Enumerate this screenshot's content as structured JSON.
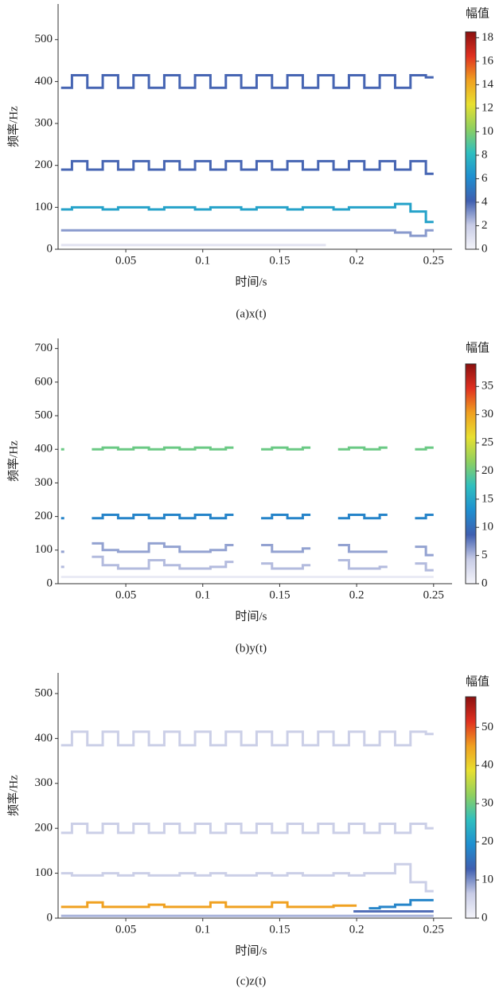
{
  "chart_data": [
    {
      "type": "spectrogram",
      "title": "(a)x(t)",
      "xlabel": "时间/s",
      "ylabel": "频率/Hz",
      "colorbar_label": "幅值",
      "xlim": [
        0.006,
        0.262
      ],
      "xticks": [
        0.05,
        0.1,
        0.15,
        0.2,
        0.25
      ],
      "ylim": [
        0,
        585
      ],
      "yticks": [
        0,
        100,
        200,
        300,
        400,
        500
      ],
      "clim": [
        0,
        18.5
      ],
      "cticks": [
        0,
        2,
        4,
        6,
        8,
        10,
        12,
        14,
        16,
        18
      ],
      "colormap": [
        "#f4f4fa",
        "#c8cce6",
        "#3f5fb0",
        "#1f8fd0",
        "#2fbfbf",
        "#8fd05f",
        "#e8e030",
        "#f0a020",
        "#e03020",
        "#8b1010"
      ],
      "x": [
        0.01,
        0.02,
        0.03,
        0.04,
        0.05,
        0.06,
        0.07,
        0.08,
        0.09,
        0.1,
        0.11,
        0.12,
        0.13,
        0.14,
        0.15,
        0.16,
        0.17,
        0.18,
        0.19,
        0.2,
        0.21,
        0.22,
        0.23,
        0.24,
        0.25
      ],
      "ridges": [
        {
          "frequency": [
            385,
            415,
            385,
            415,
            385,
            415,
            385,
            415,
            385,
            415,
            385,
            415,
            385,
            415,
            385,
            415,
            385,
            415,
            385,
            415,
            385,
            415,
            385,
            415,
            410
          ],
          "amplitude": 4
        },
        {
          "frequency": [
            190,
            210,
            190,
            210,
            190,
            210,
            190,
            210,
            190,
            210,
            190,
            210,
            190,
            210,
            190,
            210,
            190,
            210,
            190,
            210,
            190,
            210,
            190,
            210,
            180
          ],
          "amplitude": 4
        },
        {
          "frequency": [
            95,
            100,
            100,
            95,
            100,
            100,
            95,
            100,
            100,
            95,
            100,
            100,
            95,
            100,
            100,
            95,
            100,
            100,
            95,
            100,
            100,
            100,
            108,
            90,
            65
          ],
          "amplitude": 7
        },
        {
          "frequency": [
            45,
            45,
            45,
            45,
            45,
            45,
            45,
            45,
            45,
            45,
            45,
            45,
            45,
            45,
            45,
            45,
            45,
            45,
            45,
            45,
            45,
            45,
            40,
            32,
            45
          ],
          "amplitude": 3
        },
        {
          "frequency": [
            10,
            10,
            10,
            10,
            10,
            10,
            10,
            10,
            10,
            10,
            10,
            10,
            10,
            10,
            10,
            10,
            10,
            10,
            null,
            null,
            null,
            null,
            null,
            null,
            null
          ],
          "amplitude": 0.8
        }
      ]
    },
    {
      "type": "spectrogram",
      "title": "(b)y(t)",
      "xlabel": "时间/s",
      "ylabel": "频率/Hz",
      "colorbar_label": "幅值",
      "xlim": [
        0.006,
        0.262
      ],
      "xticks": [
        0.05,
        0.1,
        0.15,
        0.2,
        0.25
      ],
      "ylim": [
        0,
        730
      ],
      "yticks": [
        0,
        100,
        200,
        300,
        400,
        500,
        600,
        700
      ],
      "clim": [
        0,
        39
      ],
      "cticks": [
        0,
        5,
        10,
        15,
        20,
        25,
        30,
        35
      ],
      "colormap": [
        "#f4f4fa",
        "#c8cce6",
        "#3f5fb0",
        "#1f8fd0",
        "#2fbfbf",
        "#8fd05f",
        "#e8e030",
        "#f0a020",
        "#e03020",
        "#8b1010"
      ],
      "x": [
        0.01,
        0.02,
        0.03,
        0.04,
        0.05,
        0.06,
        0.07,
        0.08,
        0.09,
        0.1,
        0.11,
        0.12,
        0.13,
        0.14,
        0.15,
        0.16,
        0.17,
        0.18,
        0.19,
        0.2,
        0.21,
        0.22,
        0.23,
        0.24,
        0.25
      ],
      "ridges": [
        {
          "frequency": [
            400,
            null,
            400,
            405,
            400,
            405,
            400,
            405,
            400,
            405,
            400,
            405,
            null,
            400,
            405,
            400,
            405,
            null,
            400,
            405,
            400,
            405,
            null,
            400,
            405
          ],
          "amplitude": 20
        },
        {
          "frequency": [
            195,
            null,
            195,
            205,
            195,
            205,
            195,
            205,
            195,
            205,
            195,
            205,
            null,
            195,
            205,
            195,
            205,
            null,
            195,
            205,
            195,
            205,
            null,
            195,
            205
          ],
          "amplitude": 12
        },
        {
          "frequency": [
            95,
            null,
            120,
            100,
            95,
            95,
            120,
            110,
            95,
            95,
            100,
            115,
            null,
            115,
            95,
            95,
            105,
            null,
            115,
            95,
            95,
            95,
            null,
            110,
            85
          ],
          "amplitude": 6
        },
        {
          "frequency": [
            50,
            null,
            80,
            55,
            45,
            45,
            70,
            55,
            45,
            45,
            50,
            65,
            null,
            60,
            45,
            45,
            55,
            null,
            70,
            45,
            45,
            50,
            null,
            60,
            40
          ],
          "amplitude": 5
        },
        {
          "frequency": [
            20,
            20,
            20,
            20,
            20,
            20,
            20,
            20,
            20,
            20,
            20,
            20,
            20,
            20,
            20,
            20,
            20,
            20,
            20,
            20,
            20,
            20,
            20,
            20,
            20
          ],
          "amplitude": 1
        }
      ]
    },
    {
      "type": "spectrogram",
      "title": "(c)z(t)",
      "xlabel": "时间/s",
      "ylabel": "频率/Hz",
      "colorbar_label": "幅值",
      "xlim": [
        0.006,
        0.262
      ],
      "xticks": [
        0.05,
        0.1,
        0.15,
        0.2,
        0.25
      ],
      "ylim": [
        0,
        546
      ],
      "yticks": [
        0,
        100,
        200,
        300,
        400,
        500
      ],
      "clim": [
        0,
        58
      ],
      "cticks": [
        0,
        10,
        20,
        30,
        40,
        50
      ],
      "colormap": [
        "#f4f4fa",
        "#c8cce6",
        "#3f5fb0",
        "#1f8fd0",
        "#2fbfbf",
        "#8fd05f",
        "#e8e030",
        "#f0a020",
        "#e03020",
        "#8b1010"
      ],
      "x": [
        0.01,
        0.02,
        0.03,
        0.04,
        0.05,
        0.06,
        0.07,
        0.08,
        0.09,
        0.1,
        0.11,
        0.12,
        0.13,
        0.14,
        0.15,
        0.16,
        0.17,
        0.18,
        0.19,
        0.2,
        0.21,
        0.22,
        0.23,
        0.24,
        0.25
      ],
      "ridges": [
        {
          "frequency": [
            385,
            415,
            385,
            415,
            385,
            415,
            385,
            415,
            385,
            415,
            385,
            415,
            385,
            415,
            385,
            415,
            385,
            415,
            385,
            415,
            385,
            415,
            385,
            415,
            410
          ],
          "amplitude": 6
        },
        {
          "frequency": [
            190,
            210,
            190,
            210,
            190,
            210,
            190,
            210,
            190,
            210,
            190,
            210,
            190,
            210,
            190,
            210,
            190,
            210,
            190,
            210,
            190,
            210,
            190,
            210,
            200
          ],
          "amplitude": 6
        },
        {
          "frequency": [
            100,
            95,
            95,
            100,
            95,
            100,
            95,
            95,
            100,
            95,
            100,
            95,
            95,
            100,
            95,
            100,
            95,
            95,
            100,
            95,
            100,
            100,
            120,
            80,
            60
          ],
          "amplitude": 6
        },
        {
          "frequency": [
            25,
            25,
            35,
            25,
            25,
            25,
            30,
            25,
            25,
            25,
            35,
            25,
            25,
            25,
            35,
            25,
            25,
            25,
            28,
            28,
            null,
            null,
            null,
            null,
            null
          ],
          "amplitude": 45
        },
        {
          "frequency": [
            null,
            null,
            null,
            null,
            null,
            null,
            null,
            null,
            null,
            null,
            null,
            null,
            null,
            null,
            null,
            null,
            null,
            null,
            null,
            null,
            22,
            25,
            30,
            40,
            40
          ],
          "amplitude": 18
        },
        {
          "frequency": [
            null,
            null,
            null,
            null,
            null,
            null,
            null,
            null,
            null,
            null,
            null,
            null,
            null,
            null,
            null,
            null,
            null,
            null,
            null,
            15,
            15,
            15,
            15,
            15,
            15
          ],
          "amplitude": 12
        },
        {
          "frequency": [
            5,
            5,
            5,
            5,
            5,
            5,
            5,
            5,
            5,
            5,
            5,
            5,
            5,
            5,
            5,
            5,
            5,
            5,
            5,
            5,
            5,
            5,
            5,
            5,
            5
          ],
          "amplitude": 8
        }
      ]
    }
  ]
}
